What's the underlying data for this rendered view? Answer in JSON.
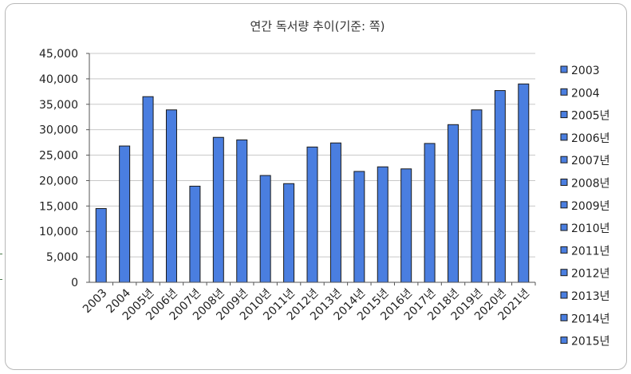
{
  "chart_data": {
    "type": "bar",
    "title": "연간 독서량 추이(기준: 쪽)",
    "xlabel": "",
    "ylabel": "",
    "ylim": [
      0,
      45000
    ],
    "yticks": [
      0,
      5000,
      10000,
      15000,
      20000,
      25000,
      30000,
      35000,
      40000,
      45000
    ],
    "ytick_labels": [
      "0",
      "5,000",
      "10,000",
      "15,000",
      "20,000",
      "25,000",
      "30,000",
      "35,000",
      "40,000",
      "45,000"
    ],
    "grid": true,
    "legend_position": "right",
    "bar_color": "#4a7ee0",
    "categories": [
      "2003",
      "2004",
      "2005년",
      "2006년",
      "2007년",
      "2008년",
      "2009년",
      "2010년",
      "2011년",
      "2012년",
      "2013년",
      "2014년",
      "2015년",
      "2016년",
      "2017년",
      "2018년",
      "2019년",
      "2020년",
      "2021년"
    ],
    "values": [
      14500,
      26800,
      36500,
      33900,
      18900,
      28500,
      28000,
      21000,
      19400,
      26600,
      27400,
      21800,
      22700,
      22300,
      27300,
      31000,
      33900,
      37700,
      39000
    ],
    "legend_entries": [
      "2003",
      "2004",
      "2005년",
      "2006년",
      "2007년",
      "2008년",
      "2009년",
      "2010년",
      "2011년",
      "2012년",
      "2013년",
      "2014년",
      "2015년"
    ]
  }
}
